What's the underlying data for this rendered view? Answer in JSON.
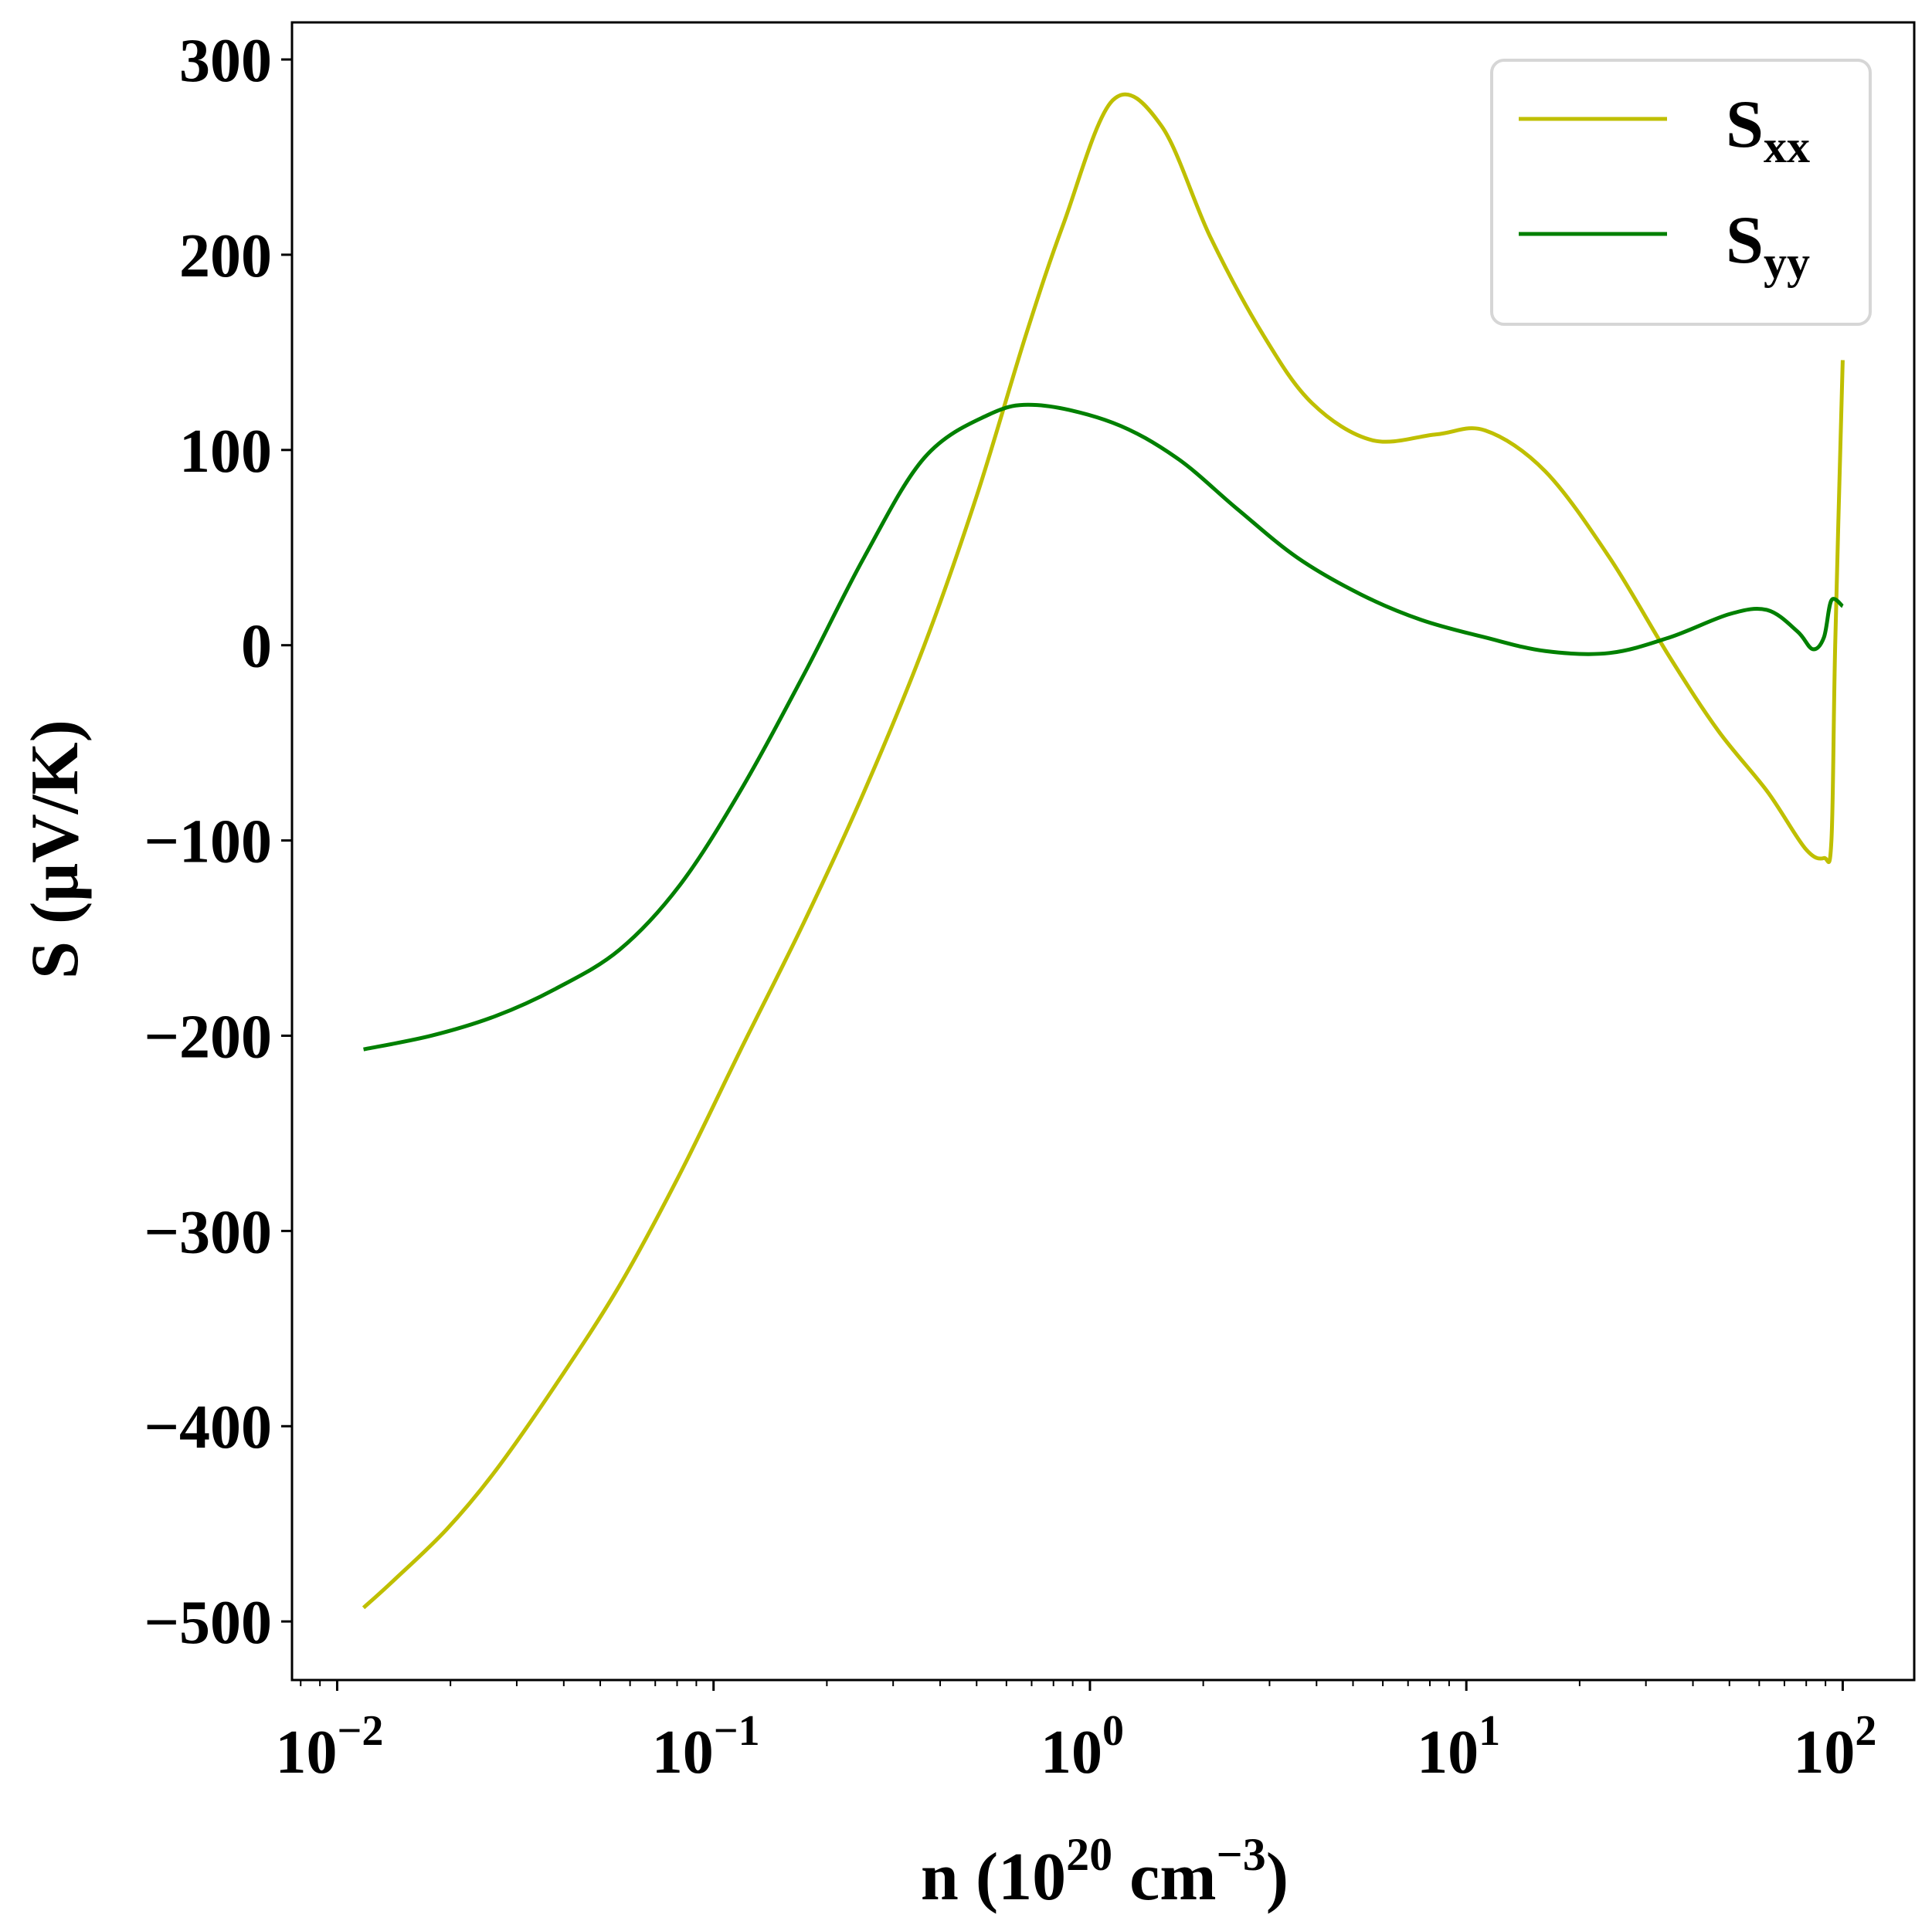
{
  "chart_data": {
    "type": "line",
    "title": "",
    "xlabel": "n (10",
    "xlabel_sup": "20",
    "xlabel_unit": " cm",
    "xlabel_unit_sup": "−3",
    "xlabel_close": ")",
    "ylabel": "S (μV/K)",
    "xscale": "log",
    "xlim_log10": [
      -2.12,
      2.19
    ],
    "ylim": [
      -530,
      319
    ],
    "grid": false,
    "legend_position": "top-right",
    "x_ticks": [
      {
        "base": "10",
        "exp": "−2",
        "log10": -2
      },
      {
        "base": "10",
        "exp": "−1",
        "log10": -1
      },
      {
        "base": "10",
        "exp": "0",
        "log10": 0
      },
      {
        "base": "10",
        "exp": "1",
        "log10": 1
      },
      {
        "base": "10",
        "exp": "2",
        "log10": 2
      }
    ],
    "y_ticks": [
      {
        "label": "300",
        "value": 300
      },
      {
        "label": "200",
        "value": 200
      },
      {
        "label": "100",
        "value": 100
      },
      {
        "label": "0",
        "value": 0
      },
      {
        "label": "−100",
        "value": -100
      },
      {
        "label": "−200",
        "value": -200
      },
      {
        "label": "−300",
        "value": -300
      },
      {
        "label": "−400",
        "value": -400
      },
      {
        "label": "−500",
        "value": -500
      }
    ],
    "series": [
      {
        "name": "S",
        "sub": "xx",
        "color": "#bfbf00",
        "x_log10": [
          -1.93,
          -1.85,
          -1.71,
          -1.58,
          -1.42,
          -1.25,
          -1.09,
          -0.93,
          -0.76,
          -0.6,
          -0.44,
          -0.3,
          -0.17,
          -0.07,
          0.06,
          0.19,
          0.32,
          0.46,
          0.59,
          0.75,
          0.92,
          1.05,
          1.21,
          1.38,
          1.54,
          1.67,
          1.8,
          1.9,
          1.95,
          1.97,
          1.98,
          2.0
        ],
        "y": [
          -493,
          -479,
          -453,
          -423,
          -379,
          -328,
          -271,
          -208,
          -142,
          -75,
          0,
          77,
          159,
          216,
          279,
          266,
          209,
          159,
          124,
          105,
          108,
          110,
          89,
          45,
          -6,
          -44,
          -75,
          -104,
          -109,
          -100,
          0,
          146
        ]
      },
      {
        "name": "S",
        "sub": "yy",
        "color": "#008000",
        "x_log10": [
          -1.93,
          -1.75,
          -1.58,
          -1.42,
          -1.25,
          -1.09,
          -0.93,
          -0.76,
          -0.6,
          -0.44,
          -0.27,
          -0.14,
          0.06,
          0.23,
          0.39,
          0.55,
          0.72,
          0.88,
          1.05,
          1.21,
          1.38,
          1.54,
          1.7,
          1.8,
          1.88,
          1.92,
          1.95,
          1.97,
          2.0
        ],
        "y": [
          -207,
          -200,
          -190,
          -176,
          -156,
          -123,
          -75,
          -15,
          45,
          96,
          118,
          123,
          114,
          96,
          70,
          45,
          26,
          13,
          4,
          -3,
          -4,
          4,
          16,
          18,
          7,
          -2,
          4,
          23,
          20
        ]
      }
    ]
  }
}
